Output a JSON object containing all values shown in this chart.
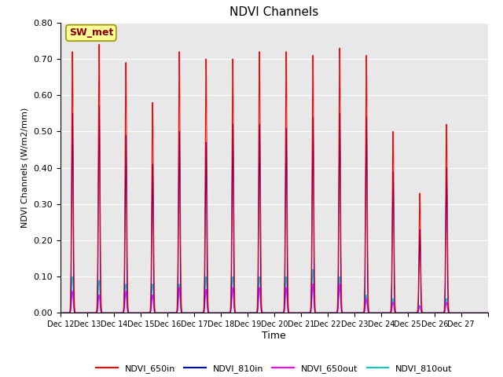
{
  "title": "NDVI Channels",
  "ylabel": "NDVI Channels (W/m2/mm)",
  "xlabel": "Time",
  "annotation": "SW_met",
  "ylim": [
    0.0,
    0.8
  ],
  "yticks": [
    0.0,
    0.1,
    0.2,
    0.3,
    0.4,
    0.5,
    0.6,
    0.7,
    0.8
  ],
  "xlabels": [
    "Dec 12",
    "Dec 13",
    "Dec 14",
    "Dec 15",
    "Dec 16",
    "Dec 17",
    "Dec 18",
    "Dec 19",
    "Dec 20",
    "Dec 21",
    "Dec 22",
    "Dec 23",
    "Dec 24",
    "Dec 25",
    "Dec 26",
    "Dec 27"
  ],
  "colors": {
    "NDVI_650in": "#ff0000",
    "NDVI_810in": "#0000cc",
    "NDVI_650out": "#ff00ff",
    "NDVI_810out": "#00cccc"
  },
  "legend_labels": [
    "NDVI_650in",
    "NDVI_810in",
    "NDVI_650out",
    "NDVI_810out"
  ],
  "background_color": "#e8e8e8",
  "annotation_bg": "#ffff99",
  "annotation_border": "#999900",
  "annotation_text_color": "#880000",
  "peak_650in": [
    0.72,
    0.74,
    0.69,
    0.58,
    0.72,
    0.7,
    0.7,
    0.72,
    0.72,
    0.71,
    0.73,
    0.71,
    0.5,
    0.33,
    0.52,
    0.0
  ],
  "peak_810in": [
    0.55,
    0.57,
    0.49,
    0.41,
    0.5,
    0.47,
    0.52,
    0.52,
    0.51,
    0.54,
    0.55,
    0.54,
    0.39,
    0.23,
    0.4,
    0.0
  ],
  "peak_650out": [
    0.06,
    0.05,
    0.06,
    0.05,
    0.07,
    0.065,
    0.07,
    0.07,
    0.07,
    0.08,
    0.08,
    0.04,
    0.03,
    0.02,
    0.03,
    0.0
  ],
  "peak_810out": [
    0.1,
    0.09,
    0.08,
    0.08,
    0.08,
    0.1,
    0.1,
    0.1,
    0.1,
    0.12,
    0.1,
    0.05,
    0.04,
    0.02,
    0.04,
    0.0
  ]
}
